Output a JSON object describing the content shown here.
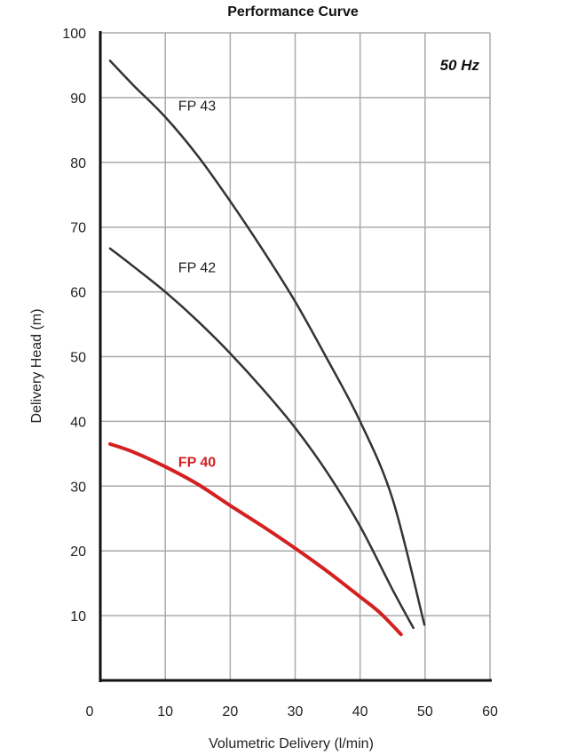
{
  "chart_data": {
    "type": "line",
    "title": "Performance Curve",
    "xlabel": "Volumetric Delivery (l/min)",
    "ylabel": "Delivery Head (m)",
    "xlim": [
      0,
      60
    ],
    "ylim": [
      0,
      100
    ],
    "xticks": [
      0,
      10,
      20,
      30,
      40,
      50,
      60
    ],
    "yticks": [
      10,
      20,
      30,
      40,
      50,
      60,
      70,
      80,
      90,
      100
    ],
    "grid": true,
    "annotation": "50 Hz",
    "series": [
      {
        "name": "FP 43",
        "color": "#333333",
        "label_at": [
          12,
          88
        ],
        "x": [
          1.5,
          5,
          10,
          15,
          20,
          25,
          30,
          35,
          40,
          45,
          49.9
        ],
        "y": [
          95.7,
          92,
          87,
          81,
          74,
          66.5,
          58.5,
          49.5,
          40,
          28,
          8.6
        ]
      },
      {
        "name": "FP 42",
        "color": "#333333",
        "label_at": [
          12,
          63
        ],
        "x": [
          1.5,
          5,
          10,
          15,
          20,
          25,
          30,
          35,
          40,
          45,
          48.2
        ],
        "y": [
          66.7,
          64,
          60,
          55.5,
          50.5,
          45,
          39,
          32,
          23.8,
          14,
          8.1
        ]
      },
      {
        "name": "FP 40",
        "color": "#d42020",
        "label_at": [
          12,
          33
        ],
        "x": [
          1.5,
          5,
          10,
          15,
          20,
          25,
          30,
          35,
          40,
          43,
          46.3
        ],
        "y": [
          36.5,
          35.3,
          33,
          30.3,
          27,
          23.8,
          20.4,
          16.8,
          12.9,
          10.5,
          7.1
        ]
      }
    ]
  }
}
